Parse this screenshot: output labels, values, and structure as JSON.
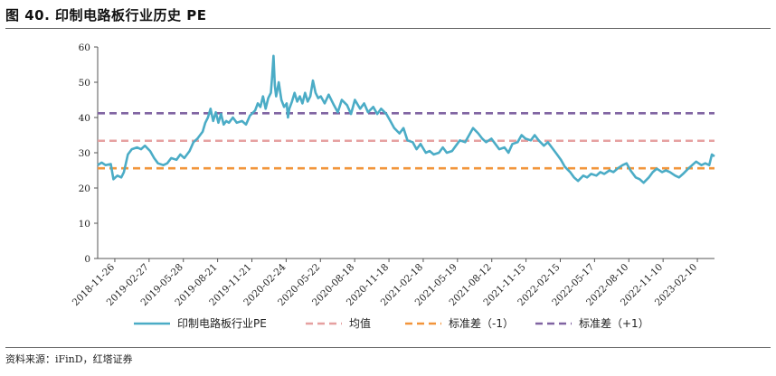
{
  "title": "图 40. 印制电路板行业历史 PE",
  "source": "资料来源：iFinD，红塔证券",
  "colors": {
    "series": "#4bacc6",
    "mean": "#e6a0a0",
    "minus1": "#f2953b",
    "plus1": "#8064a2"
  },
  "chart_data": {
    "type": "line",
    "ylim": [
      0,
      60
    ],
    "yticks": [
      "0",
      "10",
      "20",
      "30",
      "40",
      "50",
      "60"
    ],
    "xlabels": [
      "2018-11-26",
      "2019-02-27",
      "2019-05-28",
      "2019-08-21",
      "2019-11-21",
      "2020-02-24",
      "2020-05-22",
      "2020-08-18",
      "2020-11-18",
      "2021-02-18",
      "2021-05-19",
      "2021-08-12",
      "2021-11-15",
      "2022-02-15",
      "2022-05-17",
      "2022-08-10",
      "2022-11-10",
      "2023-02-10"
    ],
    "grid": false,
    "legend_position": "bottom",
    "reference_lines": [
      {
        "name": "均值",
        "value": 33.4
      },
      {
        "name": "标准差（-1）",
        "value": 25.6
      },
      {
        "name": "标准差（+1）",
        "value": 41.2
      }
    ],
    "series": [
      {
        "name": "印制电路板行业PE",
        "points": [
          [
            0,
            26.5
          ],
          [
            0.3,
            27.2
          ],
          [
            0.6,
            26.5
          ],
          [
            1,
            26.8
          ],
          [
            1.2,
            22.5
          ],
          [
            1.5,
            23.5
          ],
          [
            1.8,
            23.0
          ],
          [
            2,
            24.5
          ],
          [
            2.3,
            29.5
          ],
          [
            2.6,
            31.0
          ],
          [
            3,
            31.5
          ],
          [
            3.3,
            31.0
          ],
          [
            3.6,
            32.0
          ],
          [
            4,
            30.5
          ],
          [
            4.3,
            28.5
          ],
          [
            4.6,
            27.0
          ],
          [
            5,
            26.5
          ],
          [
            5.3,
            27.0
          ],
          [
            5.6,
            28.5
          ],
          [
            6,
            28.0
          ],
          [
            6.3,
            29.5
          ],
          [
            6.6,
            28.5
          ],
          [
            7,
            30.5
          ],
          [
            7.3,
            33.0
          ],
          [
            7.6,
            34.0
          ],
          [
            8,
            36.0
          ],
          [
            8.2,
            38.5
          ],
          [
            8.4,
            40.0
          ],
          [
            8.6,
            42.5
          ],
          [
            8.8,
            39.0
          ],
          [
            9,
            41.5
          ],
          [
            9.2,
            38.5
          ],
          [
            9.4,
            41.0
          ],
          [
            9.6,
            38.0
          ],
          [
            9.8,
            39.0
          ],
          [
            10,
            38.5
          ],
          [
            10.3,
            40.0
          ],
          [
            10.6,
            38.5
          ],
          [
            11,
            39.0
          ],
          [
            11.3,
            38.0
          ],
          [
            11.6,
            40.5
          ],
          [
            12,
            42.0
          ],
          [
            12.2,
            44.0
          ],
          [
            12.4,
            43.0
          ],
          [
            12.6,
            46.0
          ],
          [
            12.8,
            42.5
          ],
          [
            13,
            45.5
          ],
          [
            13.2,
            47.0
          ],
          [
            13.3,
            52.0
          ],
          [
            13.4,
            57.5
          ],
          [
            13.5,
            49.0
          ],
          [
            13.6,
            46.0
          ],
          [
            13.8,
            50.0
          ],
          [
            14,
            45.0
          ],
          [
            14.2,
            43.0
          ],
          [
            14.4,
            44.0
          ],
          [
            14.5,
            40.0
          ],
          [
            14.6,
            42.5
          ],
          [
            14.8,
            44.5
          ],
          [
            15,
            47.0
          ],
          [
            15.2,
            44.5
          ],
          [
            15.4,
            46.0
          ],
          [
            15.6,
            44.0
          ],
          [
            15.8,
            47.0
          ],
          [
            16,
            44.5
          ],
          [
            16.2,
            46.0
          ],
          [
            16.4,
            50.5
          ],
          [
            16.6,
            47.0
          ],
          [
            16.8,
            45.5
          ],
          [
            17,
            46.0
          ],
          [
            17.3,
            44.0
          ],
          [
            17.6,
            46.5
          ],
          [
            18,
            43.5
          ],
          [
            18.3,
            41.5
          ],
          [
            18.6,
            45.0
          ],
          [
            19,
            43.5
          ],
          [
            19.3,
            41.0
          ],
          [
            19.6,
            45.0
          ],
          [
            20,
            42.5
          ],
          [
            20.3,
            44.0
          ],
          [
            20.6,
            41.5
          ],
          [
            21,
            43.0
          ],
          [
            21.3,
            41.0
          ],
          [
            21.6,
            42.5
          ],
          [
            22,
            41.0
          ],
          [
            22.3,
            39.0
          ],
          [
            22.6,
            37.0
          ],
          [
            23,
            35.5
          ],
          [
            23.3,
            37.0
          ],
          [
            23.6,
            33.5
          ],
          [
            24,
            33.0
          ],
          [
            24.3,
            31.0
          ],
          [
            24.6,
            32.5
          ],
          [
            25,
            30.0
          ],
          [
            25.3,
            30.5
          ],
          [
            25.6,
            29.5
          ],
          [
            26,
            30.0
          ],
          [
            26.3,
            31.5
          ],
          [
            26.6,
            30.0
          ],
          [
            27,
            30.5
          ],
          [
            27.3,
            32.0
          ],
          [
            27.6,
            33.5
          ],
          [
            28,
            33.0
          ],
          [
            28.3,
            35.0
          ],
          [
            28.6,
            37.0
          ],
          [
            29,
            35.5
          ],
          [
            29.3,
            34.0
          ],
          [
            29.6,
            33.0
          ],
          [
            30,
            34.0
          ],
          [
            30.3,
            32.5
          ],
          [
            30.6,
            31.0
          ],
          [
            31,
            31.5
          ],
          [
            31.3,
            30.0
          ],
          [
            31.6,
            32.5
          ],
          [
            32,
            33.0
          ],
          [
            32.3,
            35.0
          ],
          [
            32.6,
            34.0
          ],
          [
            33,
            33.5
          ],
          [
            33.3,
            35.0
          ],
          [
            33.6,
            33.5
          ],
          [
            34,
            32.0
          ],
          [
            34.3,
            33.0
          ],
          [
            34.6,
            31.5
          ],
          [
            35,
            29.5
          ],
          [
            35.3,
            28.0
          ],
          [
            35.6,
            26.0
          ],
          [
            36,
            24.5
          ],
          [
            36.3,
            23.0
          ],
          [
            36.6,
            22.0
          ],
          [
            37,
            23.5
          ],
          [
            37.3,
            23.0
          ],
          [
            37.6,
            24.0
          ],
          [
            38,
            23.5
          ],
          [
            38.3,
            24.5
          ],
          [
            38.6,
            24.0
          ],
          [
            39,
            25.0
          ],
          [
            39.3,
            24.5
          ],
          [
            39.6,
            25.5
          ],
          [
            40,
            26.5
          ],
          [
            40.3,
            27.0
          ],
          [
            40.6,
            25.0
          ],
          [
            41,
            23.0
          ],
          [
            41.3,
            22.5
          ],
          [
            41.6,
            21.5
          ],
          [
            42,
            23.0
          ],
          [
            42.3,
            24.5
          ],
          [
            42.6,
            25.5
          ],
          [
            43,
            24.5
          ],
          [
            43.3,
            25.0
          ],
          [
            43.6,
            24.5
          ],
          [
            44,
            23.5
          ],
          [
            44.3,
            23.0
          ],
          [
            44.6,
            24.0
          ],
          [
            45,
            25.5
          ],
          [
            45.3,
            26.5
          ],
          [
            45.6,
            27.5
          ],
          [
            46,
            26.5
          ],
          [
            46.3,
            27.0
          ],
          [
            46.6,
            26.5
          ],
          [
            46.8,
            29.5
          ],
          [
            47,
            29.0
          ]
        ]
      }
    ]
  }
}
